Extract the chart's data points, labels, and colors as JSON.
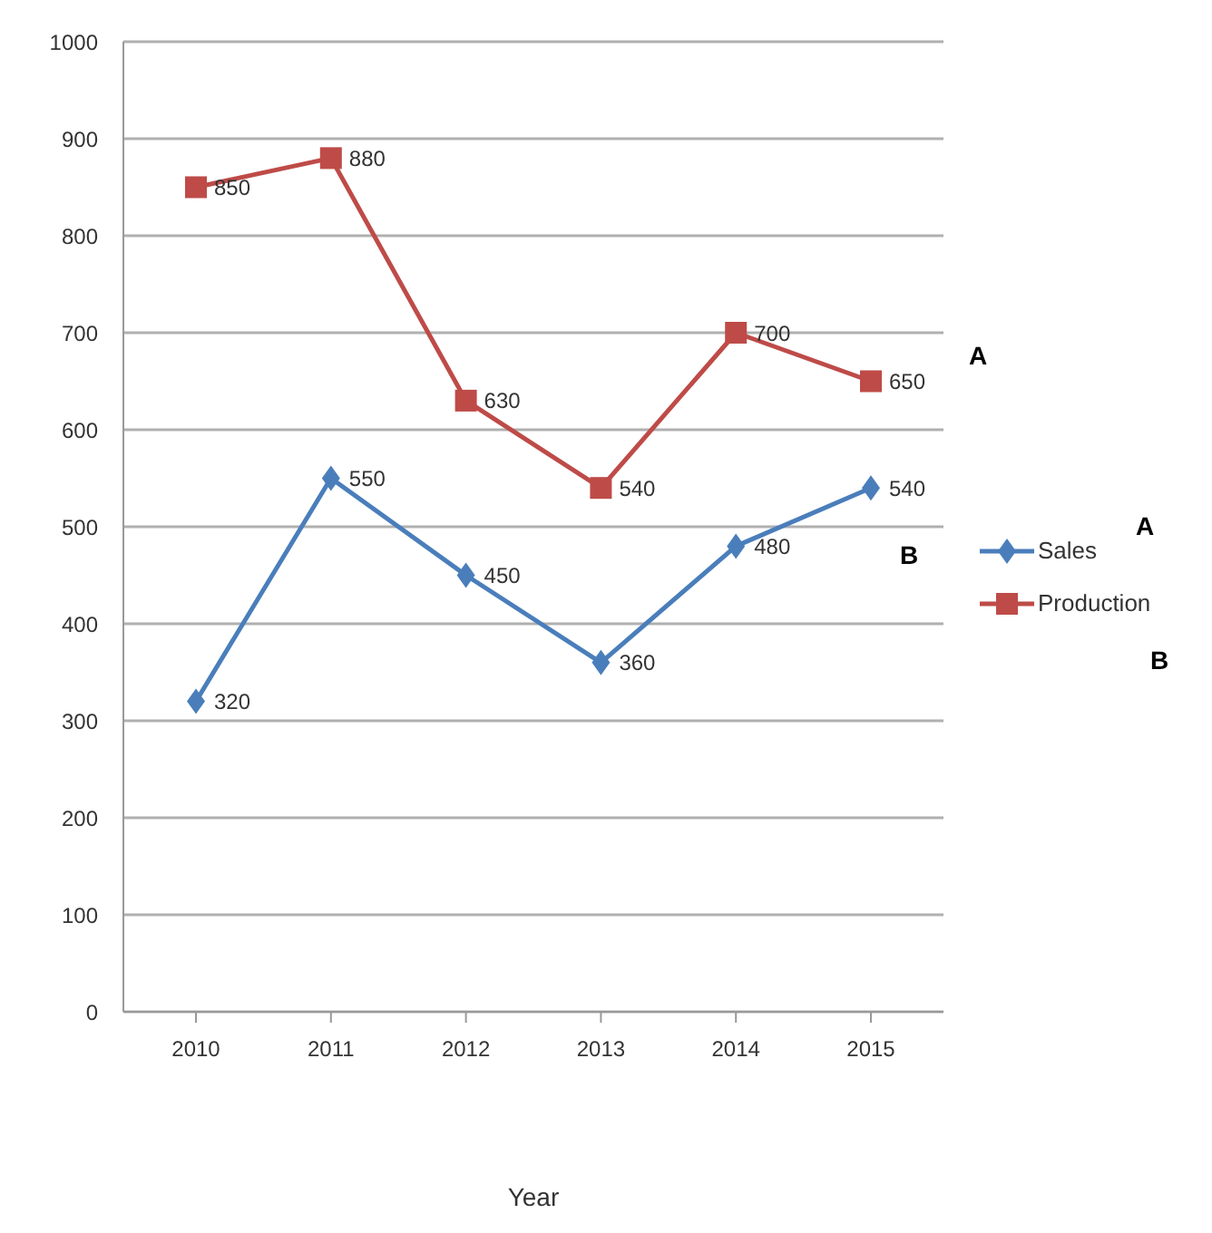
{
  "chart_data": {
    "type": "line",
    "xlabel": "Year",
    "categories": [
      "2010",
      "2011",
      "2012",
      "2013",
      "2014",
      "2015"
    ],
    "series": [
      {
        "name": "Sales",
        "color": "#4a7ebb",
        "marker": "diamond",
        "values": [
          320,
          550,
          450,
          360,
          480,
          540
        ]
      },
      {
        "name": "Production",
        "color": "#be4b48",
        "marker": "square",
        "values": [
          850,
          880,
          630,
          540,
          700,
          650
        ]
      }
    ],
    "ylim": [
      0,
      1000
    ],
    "yticks": [
      0,
      100,
      200,
      300,
      400,
      500,
      600,
      700,
      800,
      900,
      1000
    ],
    "grid": "y",
    "legend": "right",
    "data_labels": true,
    "annotations": [
      "A",
      "B",
      "A",
      "B"
    ]
  }
}
